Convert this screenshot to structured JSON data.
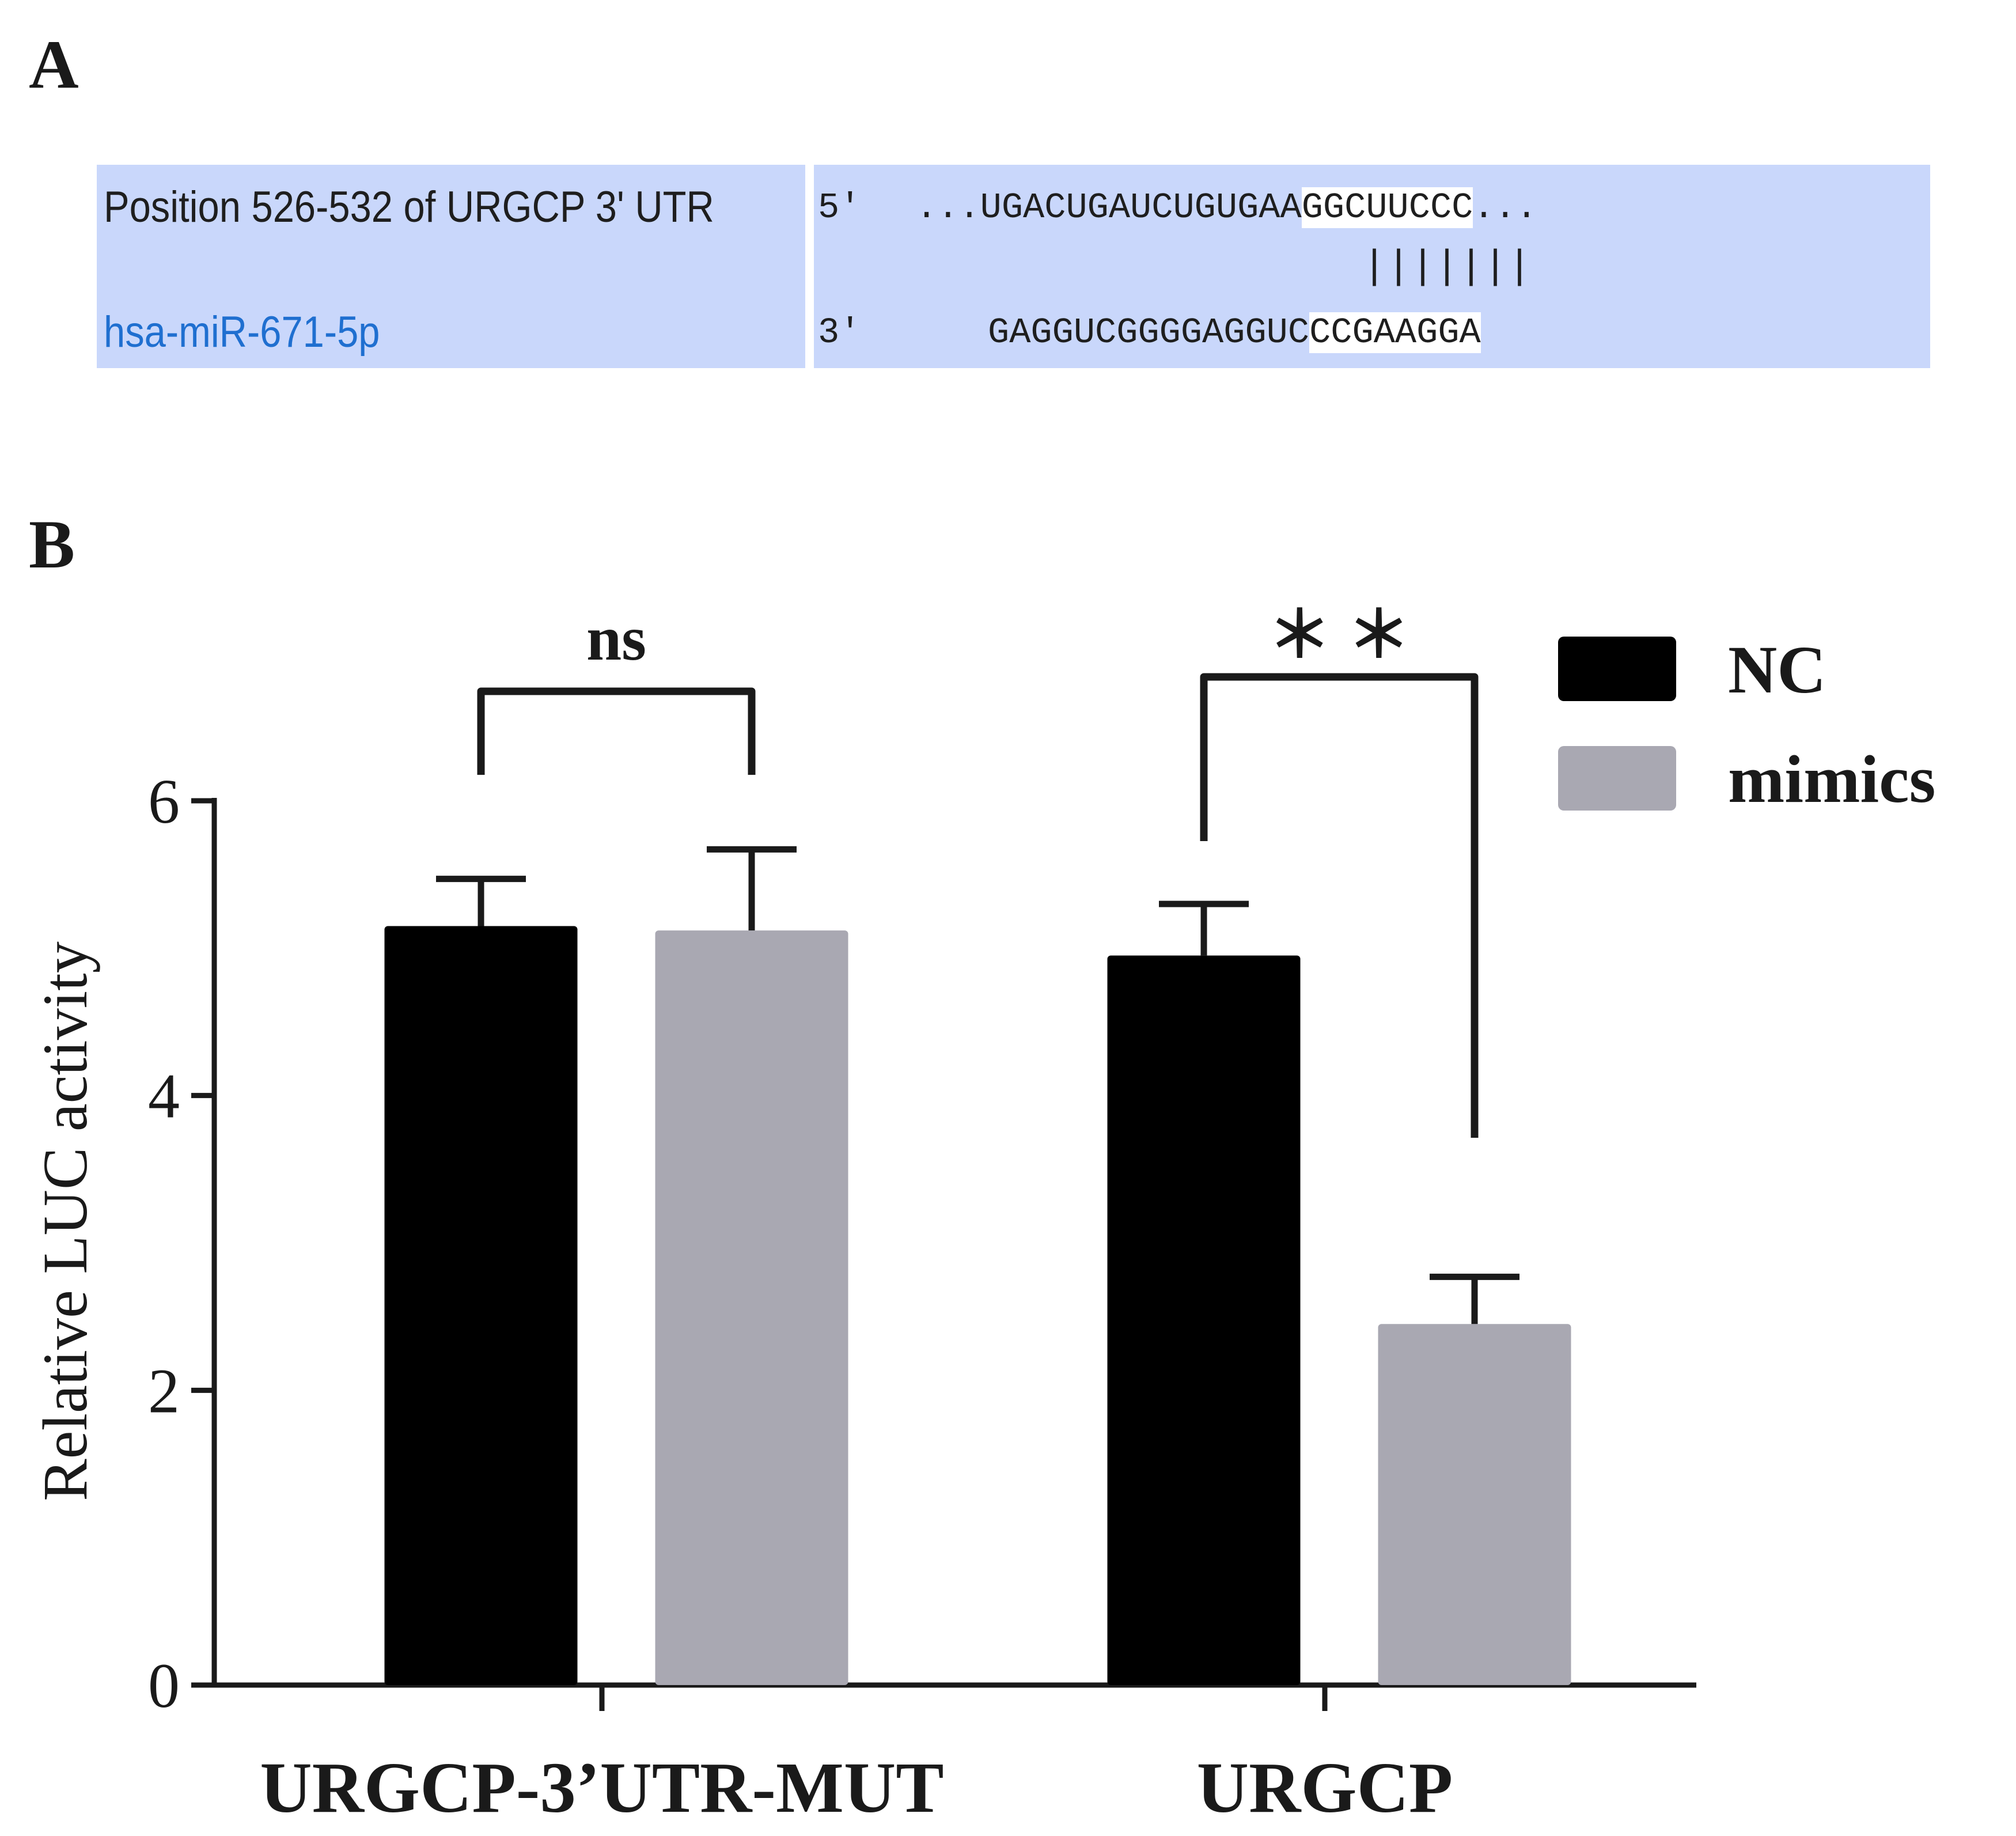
{
  "panels": {
    "a": "A",
    "b": "B"
  },
  "alignment": {
    "target_label": "Position 526-532 of URGCP 3' UTR",
    "mirna_label": "hsa-miR-671-5p",
    "end5": "5'",
    "end3": "3'",
    "utr_prefix": "...UGACUGAUCUGUGAA",
    "utr_seed": "GGCUUCCC",
    "utr_suffix": "...",
    "mir_prefix": "GAGGUCGGGGAGGUC",
    "mir_seed": "CCGAAGGA",
    "pairing": "|||||||",
    "colors": {
      "box": "#c9d7fb",
      "seed_highlight": "#ffffff",
      "mirna_label": "#1f6fd0"
    }
  },
  "chart_data": {
    "type": "bar",
    "ylabel": "Relative LUC activity",
    "ylim": [
      0,
      6
    ],
    "yticks": [
      0,
      2,
      4,
      6
    ],
    "categories": [
      "URGCP-3’UTR-MUT",
      "URGCP"
    ],
    "series": [
      {
        "name": "NC",
        "color": "#000000",
        "values": [
          5.15,
          4.95
        ],
        "errors": [
          0.32,
          0.35
        ]
      },
      {
        "name": "mimics",
        "color": "#a9a8b2",
        "values": [
          5.12,
          2.45
        ],
        "errors": [
          0.55,
          0.32
        ]
      }
    ],
    "significance": [
      {
        "category": "URGCP-3’UTR-MUT",
        "label": "ns"
      },
      {
        "category": "URGCP",
        "label": "＊ ＊"
      }
    ],
    "legend": "top-right",
    "grid": false
  }
}
